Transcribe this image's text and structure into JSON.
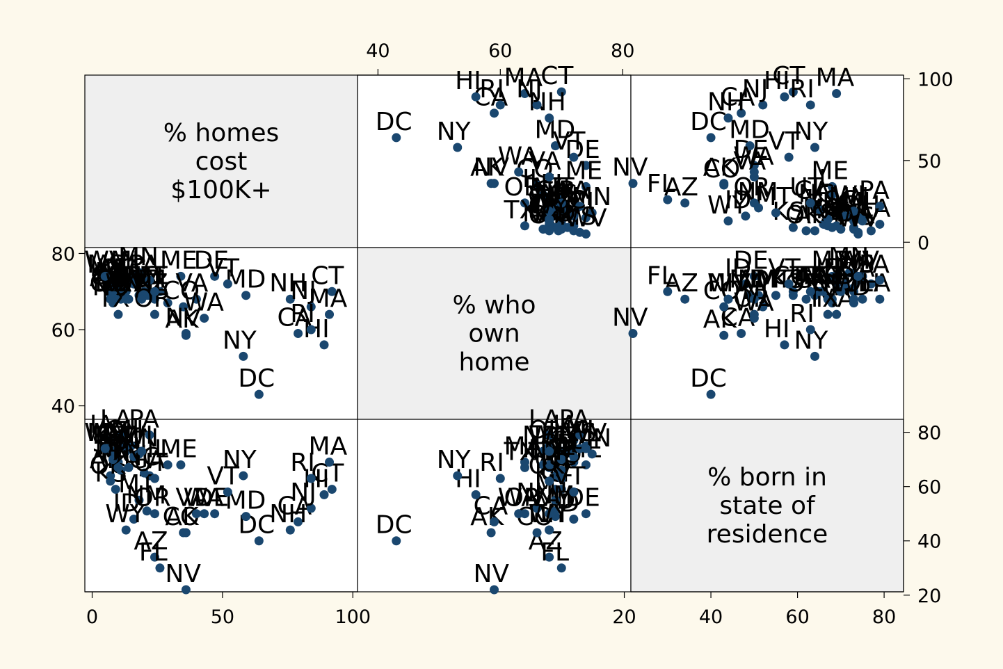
{
  "colors": {
    "background": "#fdf9ec",
    "panel": "#ffffff",
    "diagonal_panel": "#efefef",
    "marker": "#1a476f",
    "label_text": "#000000",
    "frame": "#000000"
  },
  "chart_data": {
    "type": "scatter",
    "subtype": "scatter-matrix",
    "grid": false,
    "variables": [
      {
        "key": "homes",
        "diag_lines": [
          "% homes",
          "cost",
          "$100K+"
        ],
        "ticks": [
          0,
          50,
          100
        ],
        "range": [
          -2,
          101
        ]
      },
      {
        "key": "own",
        "diag_lines": [
          "% who",
          "own",
          "home"
        ],
        "ticks": [
          40,
          60,
          80
        ],
        "range": [
          37,
          81
        ]
      },
      {
        "key": "born",
        "diag_lines": [
          "% born in",
          "state of",
          "residence"
        ],
        "ticks": [
          20,
          40,
          60,
          80
        ],
        "range": [
          22,
          84
        ]
      }
    ],
    "axis_placement": {
      "homes": "y-right (row 1), x-bottom (col 1)",
      "own": "x-top (col 2), y-left (row 2)",
      "born": "x-bottom (col 3), y-right (row 3)"
    },
    "points": [
      {
        "state": "AK",
        "homes": 36.0,
        "own": 58.5,
        "born": 43.0
      },
      {
        "state": "AL",
        "homes": 13.0,
        "own": 70.0,
        "born": 73.0
      },
      {
        "state": "AR",
        "homes": 7.0,
        "own": 69.5,
        "born": 64.0
      },
      {
        "state": "AZ",
        "homes": 24.0,
        "own": 68.0,
        "born": 34.0
      },
      {
        "state": "CA",
        "homes": 79.0,
        "own": 59.0,
        "born": 47.0
      },
      {
        "state": "CO",
        "homes": 35.0,
        "own": 66.0,
        "born": 43.0
      },
      {
        "state": "CT",
        "homes": 92.0,
        "own": 70.0,
        "born": 59.0
      },
      {
        "state": "DC",
        "homes": 64.0,
        "own": 43.0,
        "born": 40.0
      },
      {
        "state": "DE",
        "homes": 47.0,
        "own": 74.0,
        "born": 50.0
      },
      {
        "state": "FL",
        "homes": 26.0,
        "own": 70.0,
        "born": 30.0
      },
      {
        "state": "GA",
        "homes": 22.0,
        "own": 69.0,
        "born": 64.0
      },
      {
        "state": "HI",
        "homes": 89.0,
        "own": 56.0,
        "born": 57.0
      },
      {
        "state": "IA",
        "homes": 7.0,
        "own": 72.0,
        "born": 77.0
      },
      {
        "state": "ID",
        "homes": 16.0,
        "own": 72.0,
        "born": 48.0
      },
      {
        "state": "IL",
        "homes": 29.0,
        "own": 67.0,
        "born": 68.0
      },
      {
        "state": "IN",
        "homes": 10.0,
        "own": 72.0,
        "born": 69.0
      },
      {
        "state": "KS",
        "homes": 9.0,
        "own": 69.0,
        "born": 59.0
      },
      {
        "state": "KY",
        "homes": 9.0,
        "own": 71.0,
        "born": 73.0
      },
      {
        "state": "LA",
        "homes": 11.0,
        "own": 68.0,
        "born": 79.0
      },
      {
        "state": "MA",
        "homes": 91.0,
        "own": 64.0,
        "born": 69.0
      },
      {
        "state": "MD",
        "homes": 59.0,
        "own": 69.0,
        "born": 49.0
      },
      {
        "state": "ME",
        "homes": 34.0,
        "own": 74.0,
        "born": 68.0
      },
      {
        "state": "MI",
        "homes": 15.0,
        "own": 74.0,
        "born": 75.0
      },
      {
        "state": "MN",
        "homes": 18.0,
        "own": 75.0,
        "born": 72.0
      },
      {
        "state": "MO",
        "homes": 11.0,
        "own": 70.0,
        "born": 66.0
      },
      {
        "state": "MS",
        "homes": 6.0,
        "own": 73.0,
        "born": 74.0
      },
      {
        "state": "MT",
        "homes": 18.0,
        "own": 69.0,
        "born": 55.0
      },
      {
        "state": "NC",
        "homes": 20.0,
        "own": 70.0,
        "born": 65.0
      },
      {
        "state": "ND",
        "homes": 8.0,
        "own": 67.0,
        "born": 73.0
      },
      {
        "state": "NE",
        "homes": 9.0,
        "own": 68.0,
        "born": 68.0
      },
      {
        "state": "NH",
        "homes": 76.0,
        "own": 68.0,
        "born": 44.0
      },
      {
        "state": "NJ",
        "homes": 84.0,
        "own": 66.0,
        "born": 52.0
      },
      {
        "state": "NM",
        "homes": 21.0,
        "own": 69.0,
        "born": 51.0
      },
      {
        "state": "NV",
        "homes": 36.0,
        "own": 59.0,
        "born": 22.0
      },
      {
        "state": "NY",
        "homes": 58.0,
        "own": 53.0,
        "born": 64.0
      },
      {
        "state": "OH",
        "homes": 13.0,
        "own": 68.0,
        "born": 75.0
      },
      {
        "state": "OK",
        "homes": 7.0,
        "own": 68.0,
        "born": 62.0
      },
      {
        "state": "OR",
        "homes": 24.0,
        "own": 64.0,
        "born": 50.0
      },
      {
        "state": "PA",
        "homes": 22.0,
        "own": 73.0,
        "born": 79.0
      },
      {
        "state": "RI",
        "homes": 84.0,
        "own": 60.0,
        "born": 63.0
      },
      {
        "state": "SC",
        "homes": 16.0,
        "own": 72.0,
        "born": 71.0
      },
      {
        "state": "SD",
        "homes": 8.0,
        "own": 70.0,
        "born": 70.0
      },
      {
        "state": "TN",
        "homes": 14.0,
        "own": 68.0,
        "born": 67.0
      },
      {
        "state": "TX",
        "homes": 10.0,
        "own": 64.0,
        "born": 67.0
      },
      {
        "state": "UT",
        "homes": 24.0,
        "own": 70.0,
        "born": 63.0
      },
      {
        "state": "VA",
        "homes": 40.0,
        "own": 68.0,
        "born": 50.0
      },
      {
        "state": "VT",
        "homes": 52.0,
        "own": 72.0,
        "born": 58.0
      },
      {
        "state": "WA",
        "homes": 43.0,
        "own": 63.0,
        "born": 50.0
      },
      {
        "state": "WI",
        "homes": 19.0,
        "own": 68.0,
        "born": 73.0
      },
      {
        "state": "WV",
        "homes": 5.0,
        "own": 74.0,
        "born": 74.0
      },
      {
        "state": "WY",
        "homes": 13.0,
        "own": 68.0,
        "born": 44.0
      }
    ]
  }
}
